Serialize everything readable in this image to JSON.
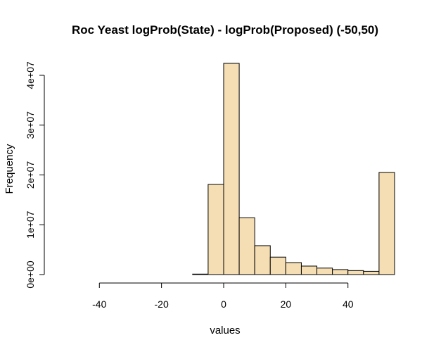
{
  "chart_data": {
    "type": "bar",
    "title": "Roc Yeast logProb(State) - logProb(Proposed) (-50,50)",
    "xlabel": "values",
    "ylabel": "Frequency",
    "bin_width": 5,
    "bins": [
      {
        "start": -55,
        "end": -50,
        "value": 0
      },
      {
        "start": -50,
        "end": -45,
        "value": 0
      },
      {
        "start": -45,
        "end": -40,
        "value": 0
      },
      {
        "start": -40,
        "end": -35,
        "value": 0
      },
      {
        "start": -35,
        "end": -30,
        "value": 0
      },
      {
        "start": -30,
        "end": -25,
        "value": 0
      },
      {
        "start": -25,
        "end": -20,
        "value": 0
      },
      {
        "start": -20,
        "end": -15,
        "value": 0
      },
      {
        "start": -15,
        "end": -10,
        "value": 0
      },
      {
        "start": -10,
        "end": -5,
        "value": 100000
      },
      {
        "start": -5,
        "end": 0,
        "value": 18100000
      },
      {
        "start": 0,
        "end": 5,
        "value": 42400000
      },
      {
        "start": 5,
        "end": 10,
        "value": 11400000
      },
      {
        "start": 10,
        "end": 15,
        "value": 5800000
      },
      {
        "start": 15,
        "end": 20,
        "value": 3500000
      },
      {
        "start": 20,
        "end": 25,
        "value": 2400000
      },
      {
        "start": 25,
        "end": 30,
        "value": 1700000
      },
      {
        "start": 30,
        "end": 35,
        "value": 1300000
      },
      {
        "start": 35,
        "end": 40,
        "value": 1000000
      },
      {
        "start": 40,
        "end": 45,
        "value": 800000
      },
      {
        "start": 45,
        "end": 50,
        "value": 650000
      },
      {
        "start": 50,
        "end": 55,
        "value": 20500000
      }
    ],
    "x_ticks": [
      -40,
      -20,
      0,
      20,
      40
    ],
    "x_tick_labels": [
      "-40",
      "-20",
      "0",
      "20",
      "40"
    ],
    "y_ticks": [
      0,
      10000000,
      20000000,
      30000000,
      40000000
    ],
    "y_tick_labels": [
      "0e+00",
      "1e+07",
      "2e+07",
      "3e+07",
      "4e+07"
    ],
    "xlim": [
      -55,
      55
    ],
    "ylim": [
      0,
      42400000
    ],
    "grid": false,
    "bar_fill": "#f5deb3",
    "bar_stroke": "#000000"
  }
}
